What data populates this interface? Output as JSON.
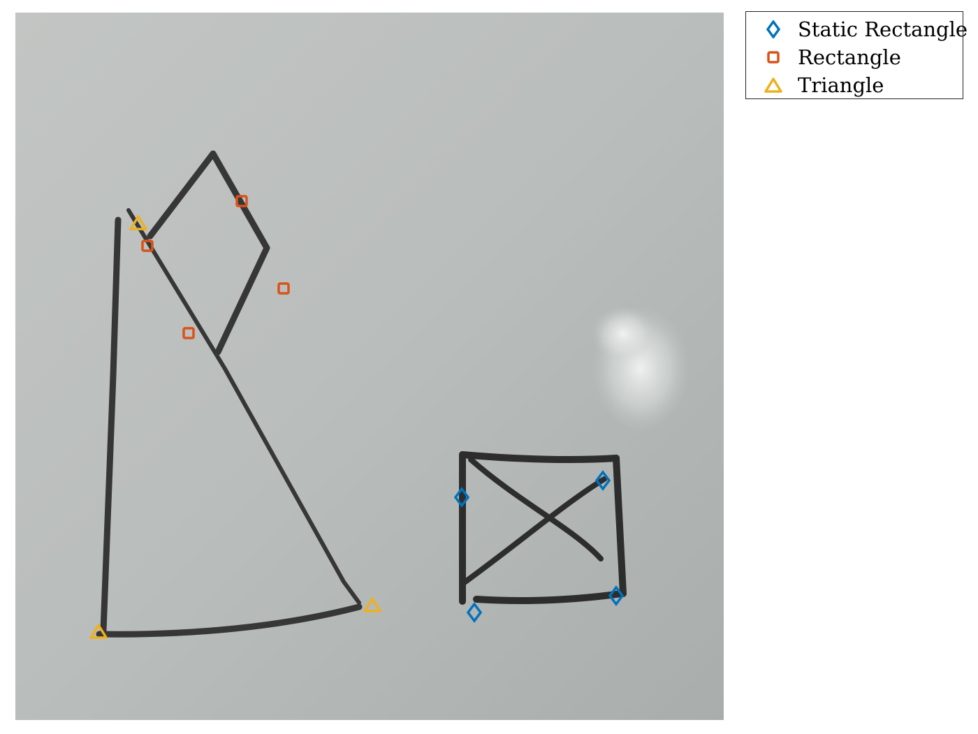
{
  "image": {
    "description_hidden": false,
    "background": "whiteboard"
  },
  "legend": {
    "items": [
      {
        "label": "Static Rectangle",
        "marker": "diamond",
        "color": "#0072BD"
      },
      {
        "label": "Rectangle",
        "marker": "square",
        "color": "#D95319"
      },
      {
        "label": "Triangle",
        "marker": "triangle",
        "color": "#EDB120"
      }
    ]
  },
  "colors": {
    "static_rectangle": "#0072BD",
    "rectangle": "#D95319",
    "triangle": "#EDB120",
    "board": "#b9bebc",
    "marker_ink": "#2a2a2a"
  }
}
